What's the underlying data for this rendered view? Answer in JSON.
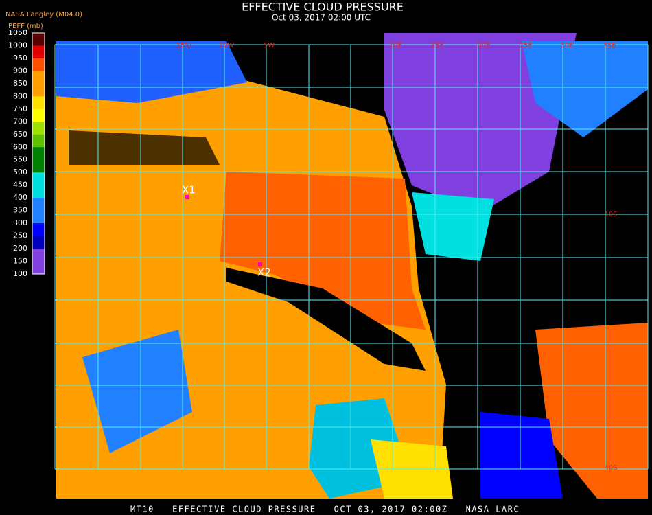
{
  "header": {
    "title": "EFFECTIVE CLOUD PRESSURE",
    "subtitle": "Oct 03, 2017 02:00 UTC"
  },
  "legend": {
    "source": "NASA Langley (M04.0)",
    "unit": "PEFF (mb)",
    "ticks": [
      "1050",
      "1000",
      "950",
      "900",
      "850",
      "800",
      "750",
      "700",
      "650",
      "600",
      "550",
      "500",
      "450",
      "400",
      "350",
      "300",
      "250",
      "200",
      "150",
      "100"
    ],
    "colors": [
      "#5a0000",
      "#e00000",
      "#ff5000",
      "#ffa000",
      "#ffa000",
      "#ffe000",
      "#ffff00",
      "#a0e000",
      "#60c000",
      "#008000",
      "#008000",
      "#00e0e0",
      "#00e0e0",
      "#2080ff",
      "#2080ff",
      "#0000ff",
      "#0000c0",
      "#8040e0",
      "#8040e0"
    ]
  },
  "map": {
    "lon_labels": [
      "15W",
      "10W",
      "5W",
      "10E",
      "15E",
      "20E",
      "25E",
      "30E",
      "35E"
    ],
    "lat_labels": [
      "10S",
      "40S"
    ],
    "markers": [
      "X1",
      "X2"
    ]
  },
  "footer": "MT10   EFFECTIVE CLOUD PRESSURE   OCT 03, 2017 02:00Z   NASA LARC"
}
